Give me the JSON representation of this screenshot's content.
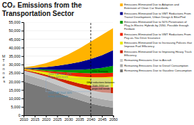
{
  "chart_data": {
    "type": "area",
    "stacked": true,
    "title": "CO₂ Emissions from the\nTransportation Sector",
    "y_label": "M\nT\no\nn\nn\ne\ns",
    "x": [
      2010,
      2015,
      2020,
      2025,
      2030,
      2035,
      2040,
      2045,
      2050
    ],
    "xlim": [
      2010,
      2050
    ],
    "xticks": [
      2010,
      2015,
      2020,
      2025,
      2030,
      2035,
      2040,
      2045,
      2050
    ],
    "ylim": [
      0,
      55000
    ],
    "yticks": [
      0,
      {
        "value": 5000,
        "label": "5,000"
      },
      {
        "value": 10000,
        "label": "10,000"
      },
      {
        "value": 15000,
        "label": "15,000"
      },
      {
        "value": 20000,
        "label": "20,000"
      },
      {
        "value": 25000,
        "label": "25,000"
      },
      {
        "value": 30000,
        "label": "30,000"
      },
      {
        "value": 35000,
        "label": "35,000"
      },
      {
        "value": 40000,
        "label": "40,000"
      },
      {
        "value": 45000,
        "label": "45,000"
      },
      {
        "value": 50000,
        "label": "50,000"
      },
      {
        "value": 55000,
        "label": "55,000"
      }
    ],
    "grid": true,
    "legend": "right",
    "series": [
      {
        "name": "Remaining Emissions Due to Gasoline Consumption",
        "color": "#787878",
        "values": [
          20000,
          18000,
          16000,
          13500,
          11000,
          9000,
          7000,
          5500,
          4500
        ]
      },
      {
        "name": "Remaining Emissions Due to Diesel Consumption",
        "color": "#aaaaaa",
        "values": [
          4500,
          4500,
          4500,
          4500,
          4500,
          4200,
          4000,
          4000,
          4000
        ]
      },
      {
        "name": "Remaining Emissions Due to Aircraft",
        "color": "#c8c8c8",
        "values": [
          2000,
          2300,
          2500,
          2800,
          3000,
          3300,
          3800,
          4000,
          4500
        ]
      },
      {
        "name": "Emissions Eliminated Due to Improving Heavy Truck\nEfficiency",
        "color": "#cc2200",
        "values": [
          500,
          700,
          1000,
          1400,
          2000,
          2300,
          2700,
          3300,
          3500
        ]
      },
      {
        "name": "Emissions Eliminated Due to Increasing Policies that\nImprove Fuel Efficiency",
        "color": "#e8e800",
        "values": [
          400,
          1000,
          1500,
          2300,
          3000,
          4000,
          5000,
          5700,
          6300
        ]
      },
      {
        "name": "Emissions Eliminated Due to VMT Reductions From\nPay-as-You Drive Insurance",
        "color": "#ee2200",
        "values": [
          300,
          500,
          800,
          1300,
          1800,
          2200,
          2300,
          2400,
          2300
        ]
      },
      {
        "name": "Emissions Eliminated Due to 50% Penetration of\nPlug-In Electric Hybrids by 2050, Possible through\nFeebate",
        "color": "#009900",
        "values": [
          200,
          400,
          700,
          1000,
          1500,
          1900,
          2500,
          3100,
          4100
        ]
      },
      {
        "name": "Emissions Eliminated Due to VMT Reductions From\nTransit Development, Urban Design & Bike/Ped",
        "color": "#00008b",
        "values": [
          200,
          700,
          1500,
          2400,
          3500,
          4600,
          5900,
          7500,
          9300
        ]
      },
      {
        "name": "Emissions Eliminated Due to Adoption and\nExtension of Clean Car Standards",
        "color": "#ffb300",
        "values": [
          200,
          1100,
          2300,
          3800,
          5700,
          8000,
          10300,
          12000,
          13000
        ]
      }
    ],
    "reference_lines": [
      {
        "x": [
          2040,
          2040
        ],
        "y": [
          0,
          55000
        ],
        "color": "#000000",
        "line_style": "dashed"
      },
      {
        "x": [
          2020,
          2040
        ],
        "y": [
          21500,
          21500
        ],
        "color": "#88aacc",
        "line_style": "dotted"
      },
      {
        "x": [
          2020,
          2040
        ],
        "y": [
          14000,
          14000
        ],
        "color": "#88aacc",
        "line_style": "dotted"
      },
      {
        "x": [
          2020,
          2020
        ],
        "y": [
          14000,
          21500
        ],
        "color": "#88aacc",
        "line_style": "dotted"
      }
    ],
    "box": {
      "x": [
        2040,
        2049
      ],
      "y": [
        13000,
        22000
      ],
      "color": "#d0d0d0"
    },
    "annotations": [
      {
        "text": "2030 CAP Goal: 20%\nbelow 2005 levels",
        "x": 2021,
        "y": 21700,
        "color": "#4488aa"
      },
      {
        "text": "2050 CAP Goal: 40%\nbelow 2005 levels",
        "x": 2021,
        "y": 13800,
        "color": "#4488aa"
      },
      {
        "text": "2050 Scenario",
        "x": 2040.5,
        "y": 26000,
        "color": "#000000"
      },
      {
        "text": "GHG reductions between\n2040-2050 are\nprojected trends",
        "x": 2044.5,
        "y": 17500,
        "color": "#000000"
      }
    ]
  }
}
